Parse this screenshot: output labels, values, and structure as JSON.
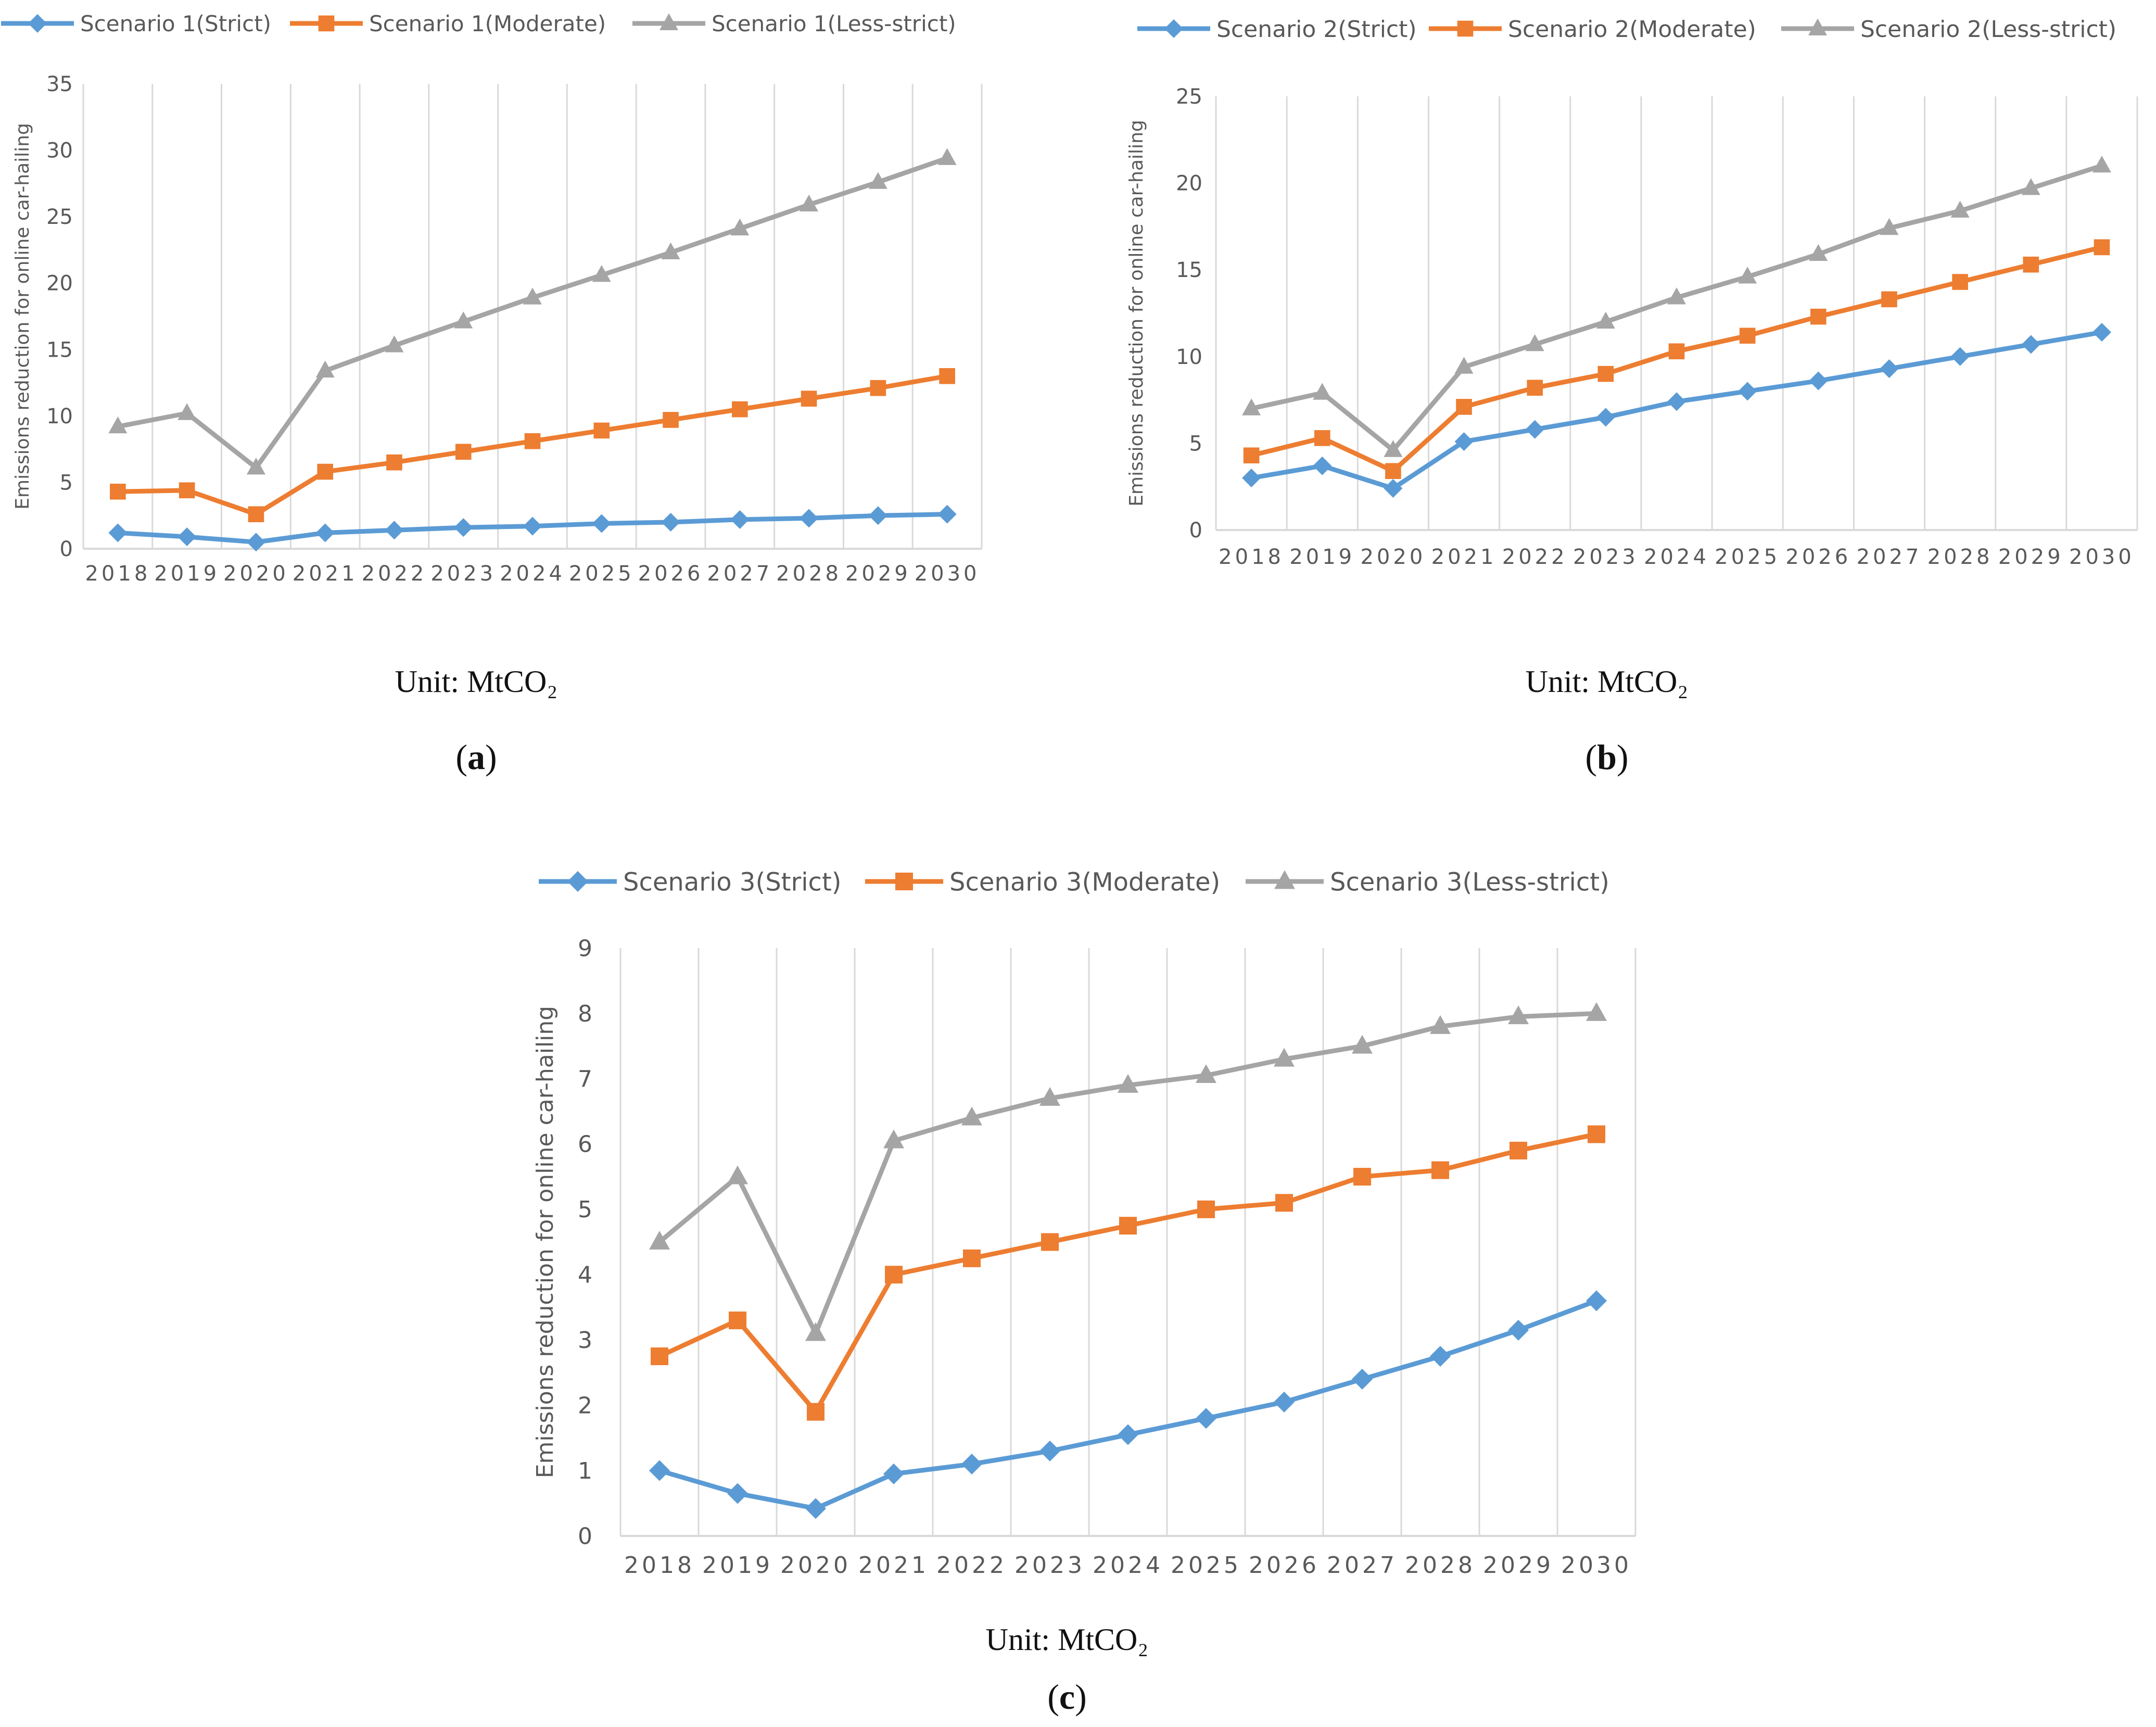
{
  "colors": {
    "strict": "#5B9BD5",
    "moderate": "#ED7D31",
    "less_strict": "#A5A5A5",
    "grid": "#D9D9D9",
    "axis_text": "#595959"
  },
  "chart_data": [
    {
      "type": "line",
      "panel": "a",
      "caption_unit": "Unit: MtCO₂",
      "ylabel": "Emissions reduction for online car-hailing",
      "xlabel": "",
      "ylim": [
        0,
        35
      ],
      "yticks": [
        0,
        5,
        10,
        15,
        20,
        25,
        30,
        35
      ],
      "grid": true,
      "legend": "top",
      "categories": [
        "2018",
        "2019",
        "2020",
        "2021",
        "2022",
        "2023",
        "2024",
        "2025",
        "2026",
        "2027",
        "2028",
        "2029",
        "2030"
      ],
      "series": [
        {
          "name": "Scenario 1(Strict)",
          "marker": "diamond",
          "color_key": "strict",
          "values": [
            1.2,
            0.9,
            0.5,
            1.2,
            1.4,
            1.6,
            1.7,
            1.9,
            2.0,
            2.2,
            2.3,
            2.5,
            2.6
          ]
        },
        {
          "name": "Scenario 1(Moderate)",
          "marker": "square",
          "color_key": "moderate",
          "values": [
            4.3,
            4.4,
            2.6,
            5.8,
            6.5,
            7.3,
            8.1,
            8.9,
            9.7,
            10.5,
            11.3,
            12.1,
            13.0
          ]
        },
        {
          "name": "Scenario 1(Less-strict)",
          "marker": "triangle",
          "color_key": "less_strict",
          "values": [
            9.2,
            10.2,
            6.1,
            13.4,
            15.3,
            17.1,
            18.9,
            20.6,
            22.3,
            24.1,
            25.9,
            27.6,
            29.4
          ]
        }
      ]
    },
    {
      "type": "line",
      "panel": "b",
      "caption_unit": "Unit: MtCO₂",
      "ylabel": "Emissions reduction for online car-hailing",
      "xlabel": "",
      "ylim": [
        0,
        25
      ],
      "yticks": [
        0,
        5,
        10,
        15,
        20,
        25
      ],
      "grid": true,
      "legend": "top",
      "categories": [
        "2018",
        "2019",
        "2020",
        "2021",
        "2022",
        "2023",
        "2024",
        "2025",
        "2026",
        "2027",
        "2028",
        "2029",
        "2030"
      ],
      "series": [
        {
          "name": "Scenario 2(Strict)",
          "marker": "diamond",
          "color_key": "strict",
          "values": [
            3.0,
            3.7,
            2.4,
            5.1,
            5.8,
            6.5,
            7.4,
            8.0,
            8.6,
            9.3,
            10.0,
            10.7,
            11.4
          ]
        },
        {
          "name": "Scenario 2(Moderate)",
          "marker": "square",
          "color_key": "moderate",
          "values": [
            4.3,
            5.3,
            3.4,
            7.1,
            8.2,
            9.0,
            10.3,
            11.2,
            12.3,
            13.3,
            14.3,
            15.3,
            16.3
          ]
        },
        {
          "name": "Scenario 2(Less-strict)",
          "marker": "triangle",
          "color_key": "less_strict",
          "values": [
            7.0,
            7.9,
            4.6,
            9.4,
            10.7,
            12.0,
            13.4,
            14.6,
            15.9,
            17.4,
            18.4,
            19.7,
            21.0
          ]
        }
      ]
    },
    {
      "type": "line",
      "panel": "c",
      "caption_unit": "Unit: MtCO₂",
      "ylabel": "Emissions reduction for online car-hailing",
      "xlabel": "",
      "ylim": [
        0,
        9
      ],
      "yticks": [
        0,
        1,
        2,
        3,
        4,
        5,
        6,
        7,
        8,
        9
      ],
      "grid": true,
      "legend": "top",
      "categories": [
        "2018",
        "2019",
        "2020",
        "2021",
        "2022",
        "2023",
        "2024",
        "2025",
        "2026",
        "2027",
        "2028",
        "2029",
        "2030"
      ],
      "series": [
        {
          "name": "Scenario 3(Strict)",
          "marker": "diamond",
          "color_key": "strict",
          "values": [
            1.0,
            0.65,
            0.42,
            0.95,
            1.1,
            1.3,
            1.55,
            1.8,
            2.05,
            2.4,
            2.75,
            3.15,
            3.6
          ]
        },
        {
          "name": "Scenario 3(Moderate)",
          "marker": "square",
          "color_key": "moderate",
          "values": [
            2.75,
            3.3,
            1.9,
            4.0,
            4.25,
            4.5,
            4.75,
            5.0,
            5.1,
            5.5,
            5.6,
            5.9,
            6.15
          ]
        },
        {
          "name": "Scenario 3(Less-strict)",
          "marker": "triangle",
          "color_key": "less_strict",
          "values": [
            4.5,
            5.5,
            3.1,
            6.05,
            6.4,
            6.7,
            6.9,
            7.05,
            7.3,
            7.5,
            7.8,
            7.95,
            8.0
          ]
        }
      ]
    }
  ]
}
